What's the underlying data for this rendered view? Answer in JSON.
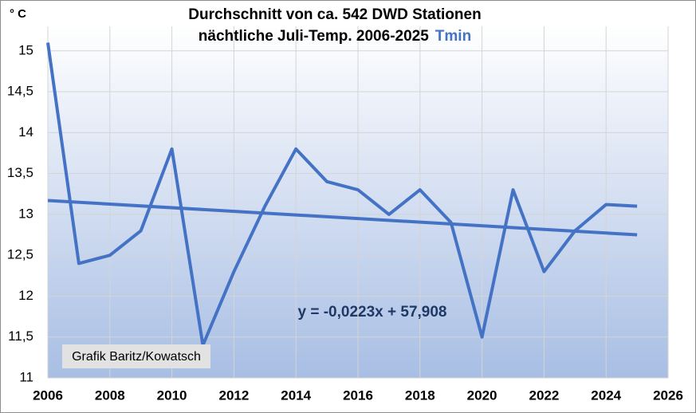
{
  "chart_data": {
    "type": "line",
    "title": "Durchschnitt von ca. 542 DWD Stationen",
    "subtitle": "nächtliche Juli-Temp. 2006-2025",
    "subtitle_tag": "Tmin",
    "y_label": "° C",
    "annotation": "Grafik Baritz/Kowatsch",
    "x": [
      2006,
      2007,
      2008,
      2009,
      2010,
      2011,
      2012,
      2013,
      2014,
      2015,
      2016,
      2017,
      2018,
      2019,
      2020,
      2021,
      2022,
      2023,
      2024,
      2025
    ],
    "series": [
      {
        "name": "Tmin",
        "color": "#4472c4",
        "values": [
          15.1,
          12.4,
          12.5,
          12.8,
          13.8,
          11.4,
          12.3,
          13.1,
          13.8,
          13.4,
          13.3,
          13.0,
          13.3,
          12.9,
          11.5,
          13.3,
          12.3,
          12.8,
          13.12,
          13.1
        ]
      }
    ],
    "trendline": {
      "equation": "y = -0,0223x + 57,908",
      "x": [
        2006,
        2025
      ],
      "values": [
        13.17,
        12.75
      ],
      "color": "#4472c4"
    },
    "xlim": [
      2006,
      2026
    ],
    "xticks": [
      2006,
      2008,
      2010,
      2012,
      2014,
      2016,
      2018,
      2020,
      2022,
      2024,
      2026
    ],
    "ylim": [
      11,
      15.3
    ],
    "yticks": [
      11,
      {
        "value": 11.5,
        "label": "11,5"
      },
      12,
      {
        "value": 12.5,
        "label": "12,5"
      },
      13,
      {
        "value": 13.5,
        "label": "13,5"
      },
      14,
      {
        "value": 14.5,
        "label": "14,5"
      },
      15
    ],
    "grid": true
  }
}
